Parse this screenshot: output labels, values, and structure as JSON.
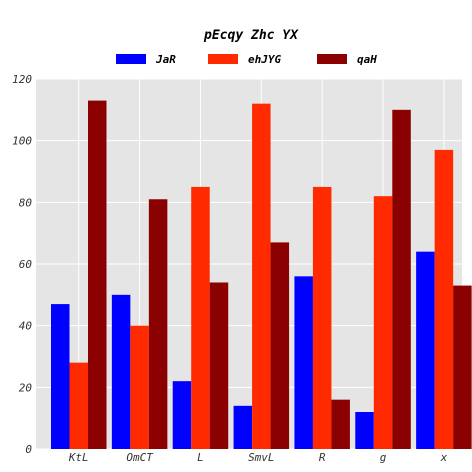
{
  "chart_data": {
    "type": "bar",
    "title": "pEcqy Zhc YX",
    "xlabel": "",
    "ylabel": "",
    "categories": [
      "KtL",
      "OmCT",
      "L",
      "SmvL",
      "R",
      "g",
      "x"
    ],
    "series": [
      {
        "name": "JaR",
        "color": "#0000ff",
        "values": [
          47,
          50,
          22,
          14,
          56,
          12,
          64
        ]
      },
      {
        "name": "ehJYG",
        "color": "#ff2a00",
        "values": [
          28,
          40,
          85,
          112,
          85,
          82,
          97
        ]
      },
      {
        "name": "qaH",
        "color": "#8b0000",
        "values": [
          113,
          81,
          54,
          67,
          16,
          110,
          53
        ]
      }
    ],
    "ylim": [
      0,
      120
    ],
    "yticks": [
      0,
      20,
      40,
      60,
      80,
      100,
      120
    ],
    "grid": true,
    "legend_position": "top-center",
    "background": "#e5e5e5"
  }
}
